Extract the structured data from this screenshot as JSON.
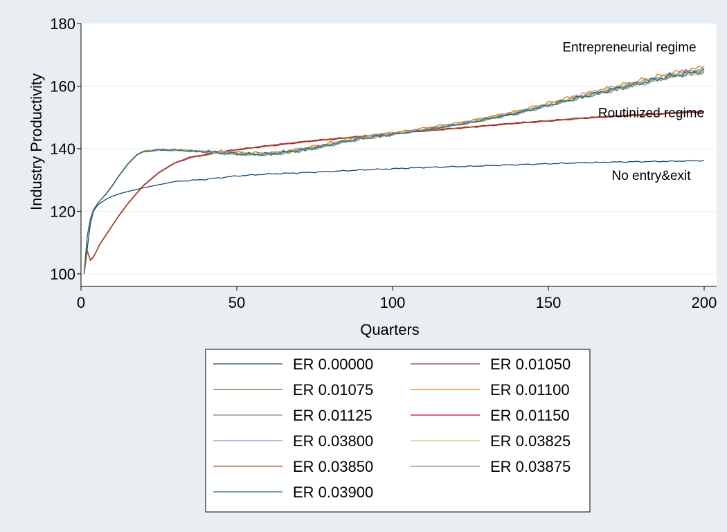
{
  "chart_data": {
    "type": "line",
    "title": "",
    "xlabel": "Quarters",
    "ylabel": "Industry Productivity",
    "xlim": [
      0,
      204
    ],
    "ylim": [
      96,
      180
    ],
    "xticks": [
      0,
      50,
      100,
      150,
      200
    ],
    "yticks": [
      100,
      120,
      140,
      160,
      180
    ],
    "grid": "horizontal",
    "legend_position": "bottom",
    "legend_columns": 2,
    "annotations": [
      {
        "text": "Entrepreneurial regime",
        "x": 176,
        "y": 171
      },
      {
        "text": "Routinized regime",
        "x": 183,
        "y": 150
      },
      {
        "text": "No entry&exit",
        "x": 183,
        "y": 130
      }
    ],
    "series": [
      {
        "name": "ER 0.00000",
        "color": "#1a476f",
        "regime": "none",
        "x": [
          1,
          2,
          3,
          4,
          5,
          6,
          8,
          10,
          12,
          15,
          20,
          25,
          30,
          40,
          50,
          60,
          75,
          90,
          100,
          110,
          125,
          140,
          150,
          160,
          175,
          190,
          200
        ],
        "values": [
          100,
          108,
          116,
          120,
          121.5,
          122.5,
          123.8,
          124.8,
          125.5,
          126.3,
          127.5,
          128.5,
          129.5,
          130.2,
          131.3,
          131.9,
          132.5,
          133.2,
          133.6,
          134,
          134.4,
          134.9,
          135.2,
          135.5,
          135.8,
          136,
          136.2
        ]
      },
      {
        "name": "ER 0.01050",
        "color": "#90353b",
        "regime": "routinized",
        "x": [
          1,
          2,
          3,
          4,
          5,
          6,
          8,
          10,
          12,
          15,
          18,
          20,
          25,
          30,
          35,
          40,
          50,
          60,
          75,
          90,
          100,
          110,
          125,
          140,
          150,
          160,
          175,
          190,
          200
        ],
        "values": [
          100,
          107.5,
          104.5,
          105.5,
          107.5,
          109.5,
          112.5,
          115.5,
          118.5,
          122.5,
          126,
          128.3,
          132.5,
          135.5,
          137.3,
          138.2,
          139.8,
          141,
          142.7,
          144,
          145,
          145.8,
          147,
          148.3,
          149,
          149.8,
          150.7,
          151.5,
          152
        ]
      },
      {
        "name": "ER 0.01075",
        "color": "#55752f",
        "regime": "entrepreneurial",
        "x": [
          1,
          2,
          3,
          4,
          5,
          6,
          8,
          10,
          12,
          15,
          18,
          20,
          25,
          30,
          35,
          40,
          45,
          50,
          55,
          60,
          65,
          70,
          75,
          80,
          85,
          90,
          95,
          100,
          110,
          125,
          140,
          150,
          160,
          175,
          190,
          200
        ],
        "values": [
          100,
          112,
          117.5,
          120.5,
          122,
          123.3,
          125.5,
          128,
          131,
          135,
          138,
          139,
          139.6,
          139.6,
          139.3,
          139,
          138.8,
          138.5,
          138.3,
          138.3,
          138.8,
          139.5,
          140.3,
          141.3,
          142.5,
          143.4,
          144,
          144.7,
          146,
          148.5,
          151.5,
          154,
          156.5,
          160,
          163.5,
          165
        ]
      },
      {
        "name": "ER 0.01100",
        "color": "#e37e00",
        "regime": "entrepreneurial",
        "x": [
          1,
          2,
          3,
          4,
          5,
          6,
          8,
          10,
          12,
          15,
          18,
          20,
          25,
          30,
          35,
          40,
          45,
          50,
          55,
          60,
          65,
          70,
          75,
          80,
          85,
          90,
          95,
          100,
          110,
          125,
          140,
          150,
          160,
          175,
          190,
          200
        ],
        "values": [
          100,
          112,
          117.5,
          120.5,
          122,
          123.3,
          125.6,
          128.2,
          131.2,
          135.2,
          138.2,
          139.2,
          139.8,
          139.7,
          139.5,
          139.1,
          139,
          138.8,
          138.6,
          138.6,
          139.1,
          139.9,
          140.8,
          141.8,
          142.9,
          143.8,
          144.5,
          145.1,
          146.6,
          149,
          152,
          154.6,
          157.2,
          160.7,
          164.2,
          166
        ]
      },
      {
        "name": "ER 0.01125",
        "color": "#6e8e84",
        "regime": "entrepreneurial",
        "x": [
          1,
          2,
          3,
          4,
          5,
          6,
          8,
          10,
          12,
          15,
          18,
          20,
          25,
          30,
          35,
          40,
          45,
          50,
          55,
          60,
          65,
          70,
          75,
          80,
          85,
          90,
          95,
          100,
          110,
          125,
          140,
          150,
          160,
          175,
          190,
          200
        ],
        "values": [
          100,
          112,
          117.5,
          120.5,
          122,
          123.3,
          125.5,
          128.1,
          131.1,
          135.1,
          138.1,
          139.1,
          139.6,
          139.5,
          139.3,
          139,
          138.7,
          138.4,
          138.2,
          138.2,
          138.7,
          139.4,
          140.2,
          141.2,
          142.3,
          143.2,
          143.9,
          144.6,
          145.9,
          148.3,
          151.3,
          153.8,
          156.3,
          159.8,
          163.3,
          164.8
        ]
      },
      {
        "name": "ER 0.01150",
        "color": "#c10534",
        "regime": "routinized",
        "x": [
          1,
          2,
          3,
          4,
          5,
          6,
          8,
          10,
          12,
          15,
          18,
          20,
          25,
          30,
          35,
          40,
          50,
          60,
          75,
          90,
          100,
          110,
          125,
          140,
          150,
          160,
          175,
          190,
          200
        ],
        "values": [
          100,
          107.3,
          104.3,
          105.3,
          107.3,
          109.3,
          112.3,
          115.3,
          118.3,
          122.3,
          125.8,
          128.1,
          132.3,
          135.3,
          137.1,
          138,
          139.6,
          140.8,
          142.5,
          143.8,
          144.8,
          145.6,
          146.8,
          148.1,
          148.8,
          149.6,
          150.5,
          151.3,
          151.8
        ]
      },
      {
        "name": "ER 0.03800",
        "color": "#938dd2",
        "regime": "entrepreneurial",
        "x": [
          1,
          2,
          3,
          4,
          5,
          6,
          8,
          10,
          12,
          15,
          18,
          20,
          25,
          30,
          35,
          40,
          45,
          50,
          55,
          60,
          65,
          70,
          75,
          80,
          85,
          90,
          95,
          100,
          110,
          125,
          140,
          150,
          160,
          175,
          190,
          200
        ],
        "values": [
          100,
          112,
          117.5,
          120.5,
          122,
          123.3,
          125.6,
          128.2,
          131.2,
          135.2,
          138.2,
          139.2,
          139.7,
          139.6,
          139.4,
          139.1,
          138.9,
          138.6,
          138.4,
          138.5,
          139,
          139.7,
          140.5,
          141.5,
          142.7,
          143.6,
          144.3,
          144.9,
          146.3,
          148.8,
          151.8,
          154.3,
          156.9,
          160.4,
          163.9,
          165.5
        ]
      },
      {
        "name": "ER 0.03825",
        "color": "#cac27e",
        "regime": "entrepreneurial",
        "x": [
          1,
          2,
          3,
          4,
          5,
          6,
          8,
          10,
          12,
          15,
          18,
          20,
          25,
          30,
          35,
          40,
          45,
          50,
          55,
          60,
          65,
          70,
          75,
          80,
          85,
          90,
          95,
          100,
          110,
          125,
          140,
          150,
          160,
          175,
          190,
          200
        ],
        "values": [
          100,
          112,
          117.5,
          120.5,
          122,
          123.3,
          125.5,
          128.1,
          131.1,
          135.1,
          138.1,
          139.1,
          139.7,
          139.6,
          139.4,
          139,
          138.8,
          138.5,
          138.3,
          138.4,
          138.9,
          139.6,
          140.4,
          141.4,
          142.6,
          143.5,
          144.2,
          144.8,
          146.1,
          148.6,
          151.6,
          154.1,
          156.6,
          160.1,
          163.6,
          164.5
        ]
      },
      {
        "name": "ER 0.03850",
        "color": "#a0522d",
        "regime": "routinized",
        "x": [
          1,
          2,
          3,
          4,
          5,
          6,
          8,
          10,
          12,
          15,
          18,
          20,
          25,
          30,
          35,
          40,
          50,
          60,
          75,
          90,
          100,
          110,
          125,
          140,
          150,
          160,
          175,
          190,
          200
        ],
        "values": [
          100,
          107.4,
          104.4,
          105.4,
          107.4,
          109.4,
          112.4,
          115.4,
          118.4,
          122.4,
          125.9,
          128.2,
          132.4,
          135.4,
          137.2,
          138.1,
          139.7,
          140.9,
          142.6,
          143.9,
          144.9,
          145.7,
          146.9,
          148.2,
          148.9,
          149.7,
          150.6,
          151.4,
          151.9
        ]
      },
      {
        "name": "ER 0.03875",
        "color": "#7b92a8",
        "regime": "entrepreneurial",
        "x": [
          1,
          2,
          3,
          4,
          5,
          6,
          8,
          10,
          12,
          15,
          18,
          20,
          25,
          30,
          35,
          40,
          45,
          50,
          55,
          60,
          65,
          70,
          75,
          80,
          85,
          90,
          95,
          100,
          110,
          125,
          140,
          150,
          160,
          175,
          190,
          200
        ],
        "values": [
          100,
          112,
          117.5,
          120.5,
          122,
          123.3,
          125.4,
          128,
          131,
          135,
          138,
          139,
          139.5,
          139.5,
          139.2,
          138.9,
          138.6,
          138.3,
          138.1,
          138.1,
          138.6,
          139.3,
          140.1,
          141.1,
          142.2,
          143.1,
          143.8,
          144.5,
          145.8,
          148.2,
          151.2,
          153.7,
          156.2,
          159.7,
          163.2,
          165
        ]
      },
      {
        "name": "ER 0.03900",
        "color": "#2d6d66",
        "regime": "entrepreneurial",
        "x": [
          1,
          2,
          3,
          4,
          5,
          6,
          8,
          10,
          12,
          15,
          18,
          20,
          25,
          30,
          35,
          40,
          45,
          50,
          55,
          60,
          65,
          70,
          75,
          80,
          85,
          90,
          95,
          100,
          110,
          125,
          140,
          150,
          160,
          175,
          190,
          200
        ],
        "values": [
          100,
          112,
          117.5,
          120.5,
          122,
          123.3,
          125.5,
          128.1,
          131.1,
          135.1,
          138.1,
          139.1,
          139.6,
          139.6,
          139.3,
          139,
          138.7,
          138.4,
          138.2,
          138.3,
          138.8,
          139.5,
          140.3,
          141.3,
          142.4,
          143.3,
          144,
          144.6,
          145.9,
          148.4,
          151.4,
          153.9,
          156.4,
          159.9,
          163.4,
          165
        ]
      }
    ]
  }
}
